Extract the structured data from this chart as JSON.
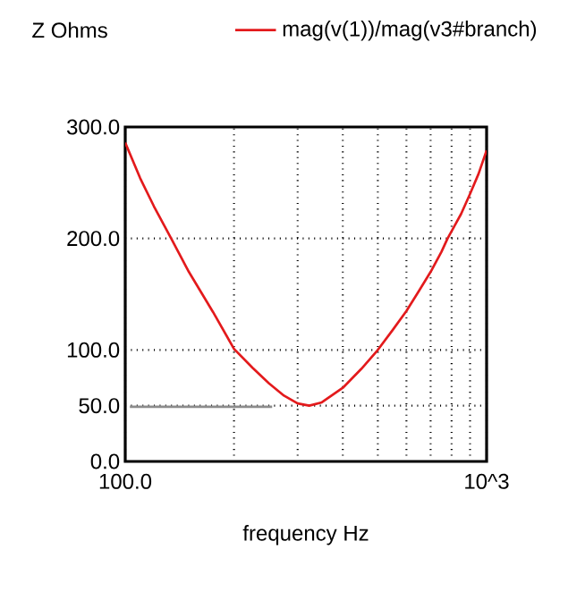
{
  "chart_data": {
    "type": "line",
    "ylabel": "Z Ohms",
    "xlabel": "frequency Hz",
    "log": "x",
    "grid": true,
    "legend": "top",
    "xlim": [
      100,
      1000
    ],
    "ylim": [
      0,
      300
    ],
    "xticks": [
      {
        "value": 100,
        "label": "100.0"
      },
      {
        "value": 200,
        "label": null
      },
      {
        "value": 300,
        "label": null
      },
      {
        "value": 400,
        "label": null
      },
      {
        "value": 500,
        "label": null
      },
      {
        "value": 600,
        "label": null
      },
      {
        "value": 700,
        "label": null
      },
      {
        "value": 800,
        "label": null
      },
      {
        "value": 900,
        "label": null
      },
      {
        "value": 1000,
        "label": "10^3"
      }
    ],
    "yticks": [
      {
        "value": 0,
        "label": "0.0"
      },
      {
        "value": 50,
        "label": "50.0"
      },
      {
        "value": 100,
        "label": "100.0"
      },
      {
        "value": 200,
        "label": "200.0"
      },
      {
        "value": 300,
        "label": "300.0"
      }
    ],
    "series": [
      {
        "name": "mag(v(1))/mag(v3#branch)",
        "color": "#e31a1c",
        "x": [
          100,
          110,
          120,
          134,
          150,
          175,
          200,
          225,
          250,
          275,
          300,
          323,
          350,
          400,
          450,
          500,
          550,
          600,
          650,
          700,
          750,
          780,
          850,
          900,
          950,
          1000
        ],
        "values": [
          286,
          254,
          229,
          200,
          170,
          134,
          101,
          84,
          70,
          59,
          52,
          50,
          53,
          66,
          83,
          100,
          118,
          135,
          153,
          170,
          188,
          200,
          222,
          240,
          258,
          279
        ]
      },
      {
        "color": "#8c8c8c",
        "x": [
          103,
          255
        ],
        "values": [
          49,
          49
        ]
      }
    ]
  }
}
